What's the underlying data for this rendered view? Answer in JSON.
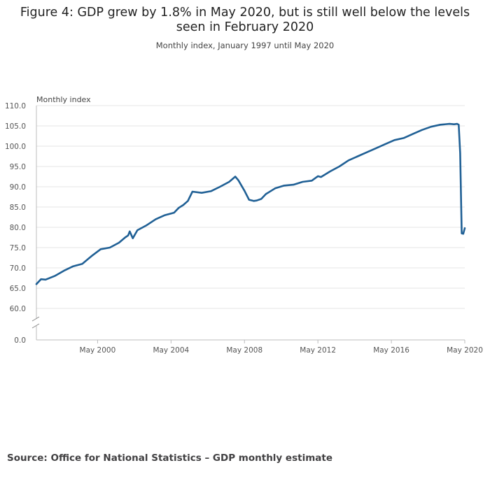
{
  "header": {
    "title_line1": "Figure 4: GDP grew by 1.8% in May 2020, but is still well below the levels",
    "title_line2": "seen in February 2020",
    "subtitle": "Monthly index, January 1997 until May 2020"
  },
  "footer": {
    "source": "Source: Office for National Statistics – GDP monthly estimate"
  },
  "chart_data": {
    "type": "line",
    "title": "Figure 4: GDP grew by 1.8% in May 2020, but is still well below the levels seen in February 2020",
    "subtitle": "Monthly index, January 1997 until May 2020",
    "ylabel": "Monthly index",
    "xlabel": "",
    "ylim": [
      0,
      110
    ],
    "y_axis_break": true,
    "y_ticks": [
      "110.0",
      "105.0",
      "100.0",
      "95.0",
      "90.0",
      "85.0",
      "80.0",
      "75.0",
      "70.0",
      "65.0",
      "60.0",
      "0.0"
    ],
    "y_tick_values": [
      110,
      105,
      100,
      95,
      90,
      85,
      80,
      75,
      70,
      65,
      60,
      0
    ],
    "x_ticks": [
      "May 2000",
      "May 2004",
      "May 2008",
      "May 2012",
      "May 2016",
      "May 2020"
    ],
    "x_tick_values": [
      2000.333,
      2004.333,
      2008.333,
      2012.333,
      2016.333,
      2020.333
    ],
    "grid": true,
    "line_color": "#206095",
    "series": [
      {
        "name": "Monthly index",
        "x": [
          1997.0,
          1997.25,
          1997.5,
          1998.0,
          1998.5,
          1999.0,
          1999.5,
          2000.0,
          2000.5,
          2001.0,
          2001.5,
          2001.833,
          2002.0,
          2002.083,
          2002.25,
          2002.5,
          2003.0,
          2003.5,
          2004.0,
          2004.5,
          2004.75,
          2005.0,
          2005.25,
          2005.5,
          2006.0,
          2006.5,
          2007.0,
          2007.5,
          2007.833,
          2008.0,
          2008.333,
          2008.583,
          2008.833,
          2009.0,
          2009.25,
          2009.5,
          2010.0,
          2010.5,
          2011.0,
          2011.5,
          2012.0,
          2012.333,
          2012.5,
          2013.0,
          2013.5,
          2014.0,
          2014.5,
          2015.0,
          2015.5,
          2016.0,
          2016.5,
          2017.0,
          2017.5,
          2018.0,
          2018.5,
          2019.0,
          2019.5,
          2019.75,
          2019.917,
          2020.0,
          2020.083,
          2020.167,
          2020.25,
          2020.333
        ],
        "values": [
          66.0,
          67.2,
          67.1,
          68.0,
          69.3,
          70.4,
          71.0,
          72.9,
          74.6,
          75.0,
          76.2,
          77.5,
          78.0,
          79.0,
          77.3,
          79.3,
          80.5,
          82.0,
          83.0,
          83.6,
          84.8,
          85.5,
          86.5,
          88.8,
          88.5,
          88.9,
          90.0,
          91.2,
          92.5,
          91.6,
          89.0,
          86.8,
          86.5,
          86.6,
          87.0,
          88.2,
          89.6,
          90.3,
          90.5,
          91.2,
          91.5,
          92.6,
          92.4,
          93.8,
          95.0,
          96.5,
          97.5,
          98.5,
          99.5,
          100.5,
          101.5,
          102.0,
          103.0,
          104.0,
          104.8,
          105.3,
          105.5,
          105.4,
          105.5,
          105.3,
          98.3,
          78.5,
          78.4,
          79.8
        ]
      }
    ]
  }
}
